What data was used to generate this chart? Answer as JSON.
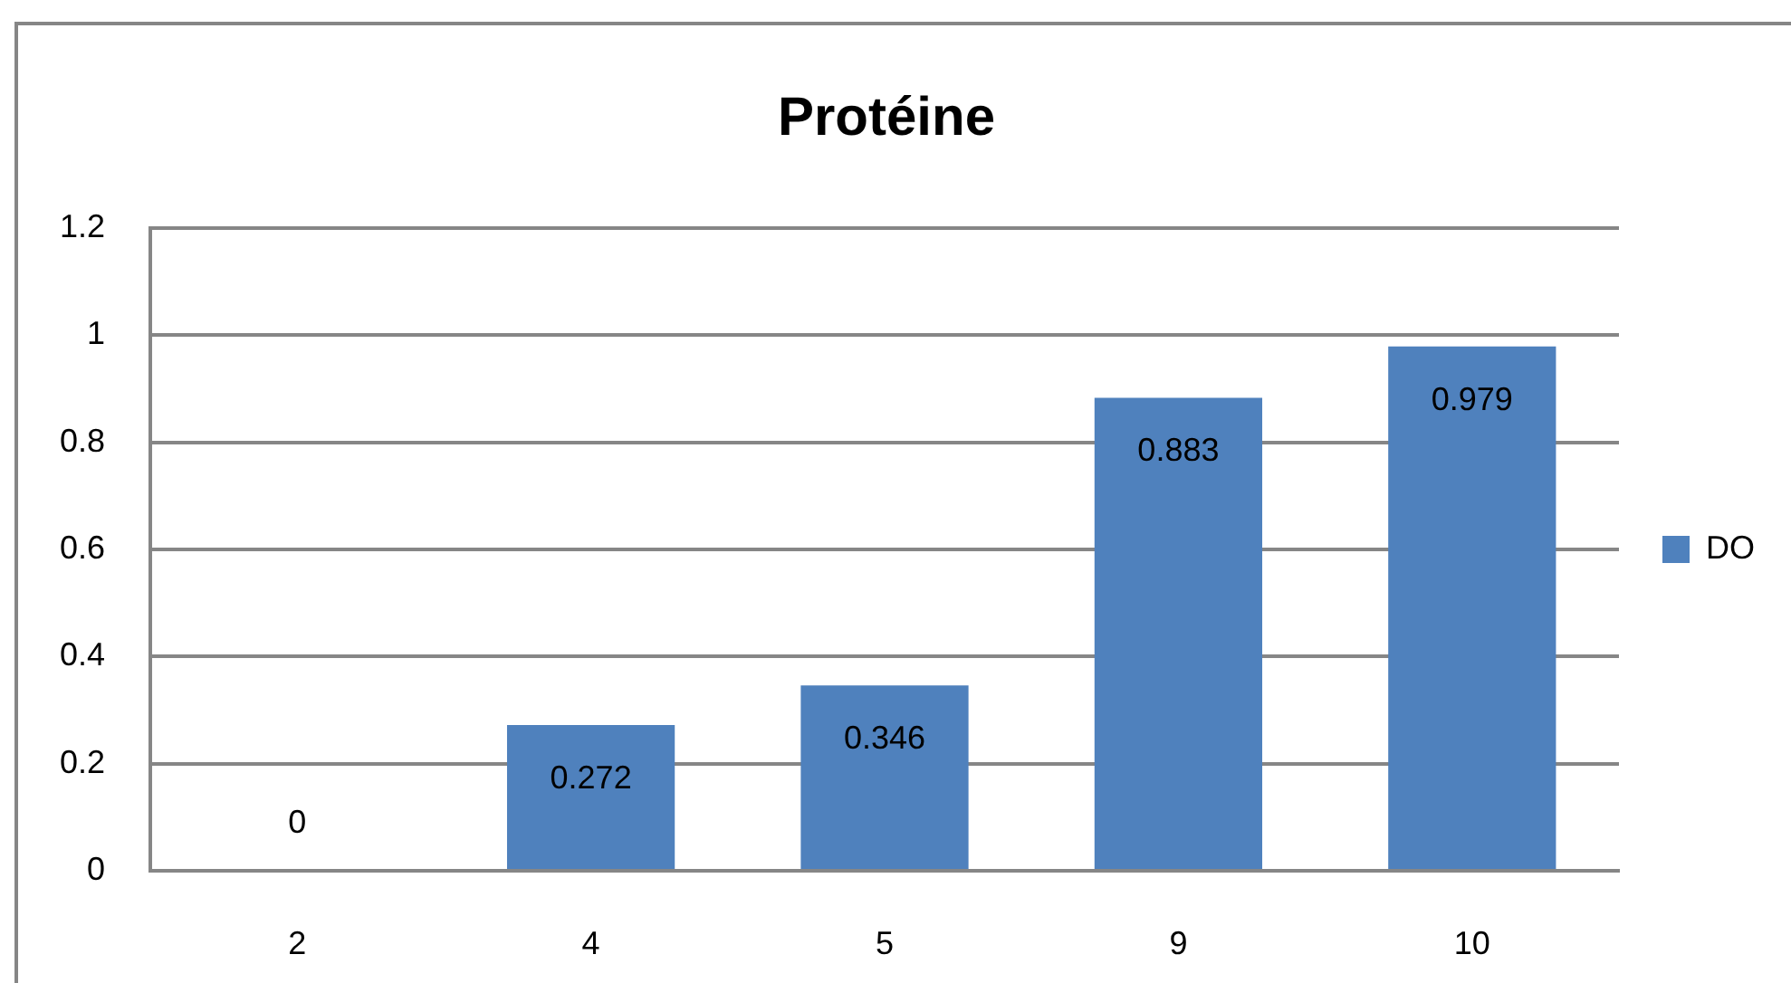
{
  "chart_data": {
    "type": "bar",
    "title": "Protéine",
    "categories": [
      "2",
      "4",
      "5",
      "9",
      "10"
    ],
    "series": [
      {
        "name": "DO",
        "color": "#4f81bd",
        "values": [
          0,
          0.272,
          0.346,
          0.883,
          0.979
        ]
      }
    ],
    "ylim": [
      0,
      1.2
    ],
    "yticks": [
      0,
      0.2,
      0.4,
      0.6,
      0.8,
      1,
      1.2
    ],
    "grid": "y",
    "legend": "right",
    "data_labels": true
  }
}
